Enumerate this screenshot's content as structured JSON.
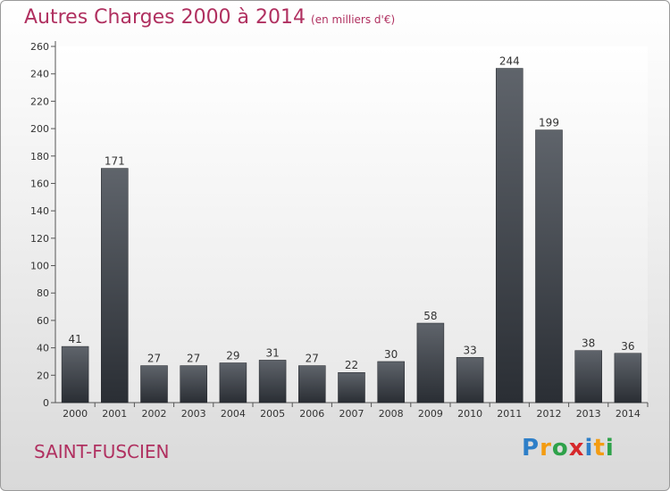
{
  "header": {
    "title": "Autres Charges 2000 à 2014",
    "unit": "(en milliers d'€)"
  },
  "footer": {
    "city": "SAINT-FUSCIEN",
    "logo_letters": [
      "P",
      "r",
      "o",
      "x",
      "i",
      "t",
      "i"
    ],
    "logo_colors": [
      "#2e7fc8",
      "#f39c12",
      "#2ea24a",
      "#d6282b",
      "#2e7fc8",
      "#f39c12",
      "#2ea24a"
    ]
  },
  "chart_data": {
    "type": "bar",
    "title": "Autres Charges 2000 à 2014",
    "subtitle": "(en milliers d'€)",
    "categories": [
      "2000",
      "2001",
      "2002",
      "2003",
      "2004",
      "2005",
      "2006",
      "2007",
      "2008",
      "2009",
      "2010",
      "2011",
      "2012",
      "2013",
      "2014"
    ],
    "values": [
      41,
      171,
      27,
      27,
      29,
      31,
      27,
      22,
      30,
      58,
      33,
      244,
      199,
      38,
      36
    ],
    "data_labels": [
      "41",
      "171",
      "27",
      "27",
      "29",
      "31",
      "27",
      "22",
      "30",
      "58",
      "33",
      "244",
      "199",
      "38",
      "36"
    ],
    "ylim": [
      0,
      260
    ],
    "yticks": [
      0,
      20,
      40,
      60,
      80,
      100,
      120,
      140,
      160,
      180,
      200,
      220,
      240,
      260
    ],
    "ytick_labels": [
      "0",
      "20",
      "40",
      "60",
      "80",
      "100",
      "120",
      "140",
      "160",
      "180",
      "200",
      "220",
      "240",
      "260"
    ],
    "grid": false,
    "legend": "none",
    "bar_color": "#3d4249"
  }
}
